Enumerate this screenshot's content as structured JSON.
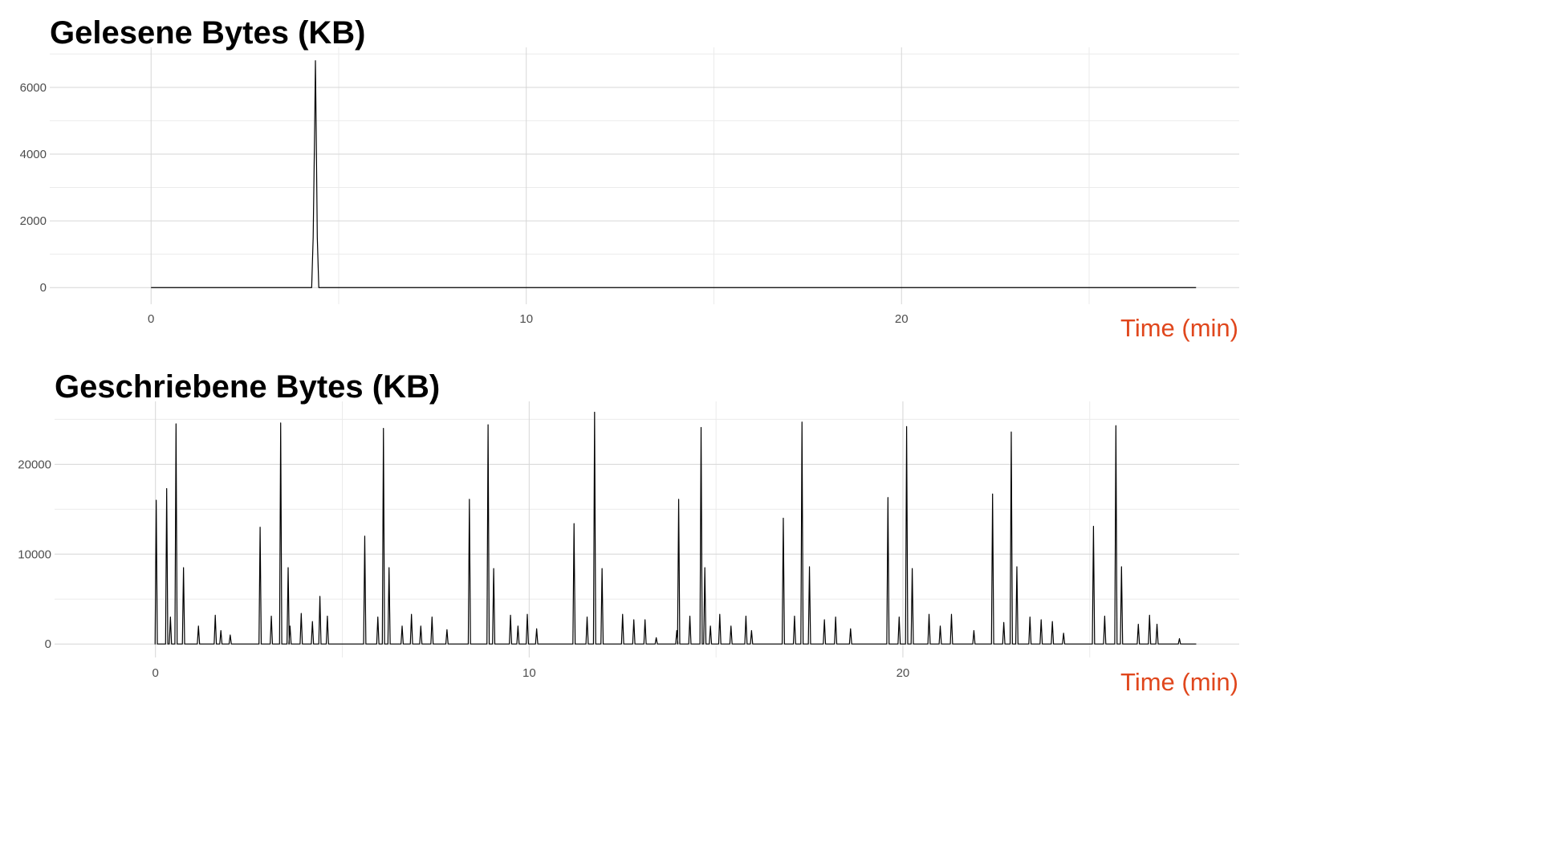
{
  "chart_data": [
    {
      "type": "line",
      "title": "Gelesene Bytes (KB)",
      "xlabel": "Time (min)",
      "ylabel": "",
      "xlim": [
        -2.7,
        29.0
      ],
      "ylim": [
        -500,
        7200
      ],
      "x_ticks": [
        0,
        10,
        20
      ],
      "x_ticks_minor": [
        5,
        15,
        25
      ],
      "y_ticks": [
        0,
        2000,
        4000,
        6000
      ],
      "y_ticks_minor": [
        1000,
        3000,
        5000,
        7000
      ],
      "grid": true,
      "line_color": "#000000",
      "series": [
        {
          "points": [
            [
              0,
              0
            ],
            [
              4.28,
              0
            ],
            [
              4.32,
              1500
            ],
            [
              4.36,
              4800
            ],
            [
              4.38,
              6800
            ],
            [
              4.4,
              4800
            ],
            [
              4.43,
              1500
            ],
            [
              4.47,
              0
            ],
            [
              27.85,
              0
            ]
          ]
        }
      ]
    },
    {
      "type": "line",
      "title": "Geschriebene Bytes (KB)",
      "xlabel": "Time (min)",
      "ylabel": "",
      "xlim": [
        -2.7,
        29.0
      ],
      "ylim": [
        -1500,
        27000
      ],
      "x_ticks": [
        0,
        10,
        20
      ],
      "x_ticks_minor": [
        5,
        15,
        25
      ],
      "y_ticks": [
        0,
        10000,
        20000
      ],
      "y_ticks_minor": [
        5000,
        15000,
        25000
      ],
      "grid": true,
      "line_color": "#000000",
      "baseline_end": 27.85,
      "series": [
        {
          "spikes": [
            [
              0.02,
              16000
            ],
            [
              0.3,
              17300
            ],
            [
              0.55,
              24500
            ],
            [
              0.75,
              8500
            ],
            [
              0.4,
              3000
            ],
            [
              1.15,
              2000
            ],
            [
              1.6,
              3200
            ],
            [
              1.75,
              1500
            ],
            [
              2.0,
              1000
            ],
            [
              2.8,
              13000
            ],
            [
              3.1,
              3100
            ],
            [
              3.35,
              24600
            ],
            [
              3.55,
              8500
            ],
            [
              3.6,
              2000
            ],
            [
              3.9,
              3400
            ],
            [
              4.2,
              2500
            ],
            [
              4.4,
              5300
            ],
            [
              4.6,
              3100
            ],
            [
              5.6,
              12000
            ],
            [
              5.95,
              3000
            ],
            [
              6.1,
              24000
            ],
            [
              6.25,
              8500
            ],
            [
              6.6,
              2000
            ],
            [
              6.85,
              3300
            ],
            [
              7.1,
              2000
            ],
            [
              7.4,
              3000
            ],
            [
              7.8,
              1600
            ],
            [
              8.4,
              16100
            ],
            [
              8.9,
              24400
            ],
            [
              9.05,
              8400
            ],
            [
              9.5,
              3200
            ],
            [
              9.7,
              2000
            ],
            [
              9.95,
              3300
            ],
            [
              10.2,
              1700
            ],
            [
              11.2,
              13400
            ],
            [
              11.55,
              3000
            ],
            [
              11.75,
              25800
            ],
            [
              11.95,
              8400
            ],
            [
              12.5,
              3300
            ],
            [
              12.8,
              2700
            ],
            [
              13.1,
              2700
            ],
            [
              13.4,
              700
            ],
            [
              13.95,
              1500
            ],
            [
              14.0,
              16100
            ],
            [
              14.3,
              3100
            ],
            [
              14.6,
              24100
            ],
            [
              14.7,
              8500
            ],
            [
              14.85,
              2000
            ],
            [
              15.1,
              3300
            ],
            [
              15.4,
              2000
            ],
            [
              15.8,
              3100
            ],
            [
              15.95,
              1500
            ],
            [
              16.8,
              14000
            ],
            [
              17.1,
              3100
            ],
            [
              17.3,
              24700
            ],
            [
              17.5,
              8600
            ],
            [
              17.9,
              2700
            ],
            [
              18.2,
              3000
            ],
            [
              18.6,
              1700
            ],
            [
              19.6,
              16300
            ],
            [
              19.9,
              3000
            ],
            [
              20.1,
              24200
            ],
            [
              20.25,
              8400
            ],
            [
              20.7,
              3300
            ],
            [
              21.0,
              2000
            ],
            [
              21.3,
              3300
            ],
            [
              21.9,
              1500
            ],
            [
              22.4,
              16700
            ],
            [
              22.7,
              2400
            ],
            [
              22.9,
              23600
            ],
            [
              23.05,
              8600
            ],
            [
              23.4,
              3000
            ],
            [
              23.7,
              2700
            ],
            [
              24.0,
              2500
            ],
            [
              24.3,
              1200
            ],
            [
              25.1,
              13100
            ],
            [
              25.4,
              3100
            ],
            [
              25.7,
              24300
            ],
            [
              25.85,
              8600
            ],
            [
              26.3,
              2200
            ],
            [
              26.6,
              3200
            ],
            [
              26.8,
              2200
            ],
            [
              27.4,
              600
            ]
          ]
        }
      ]
    }
  ]
}
